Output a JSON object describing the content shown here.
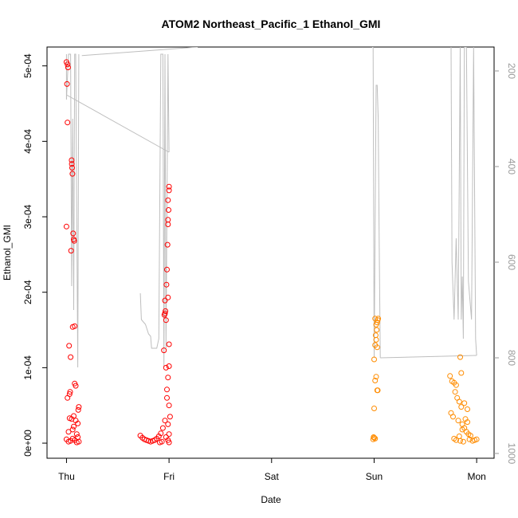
{
  "chart_data": {
    "type": "scatter",
    "title": "ATOM2 Northeast_Pacific_1 Ethanol_GMI",
    "xlabel": "Date",
    "ylabel": "Ethanol_GMI",
    "x_ticks": [
      "Thu",
      "Fri",
      "Sat",
      "Sun",
      "Mon"
    ],
    "xlim": [
      -0.19,
      4.17
    ],
    "ylim": [
      -2e-05,
      0.000525
    ],
    "y_ticks": [
      "0e+00",
      "1e-04",
      "2e-04",
      "3e-04",
      "4e-04",
      "5e-04"
    ],
    "y_tick_values": [
      0,
      0.0001,
      0.0002,
      0.0003,
      0.0004,
      0.0005
    ],
    "y2_ticks": [
      "200",
      "400",
      "600",
      "800",
      "1000"
    ],
    "y2_tick_values": [
      200,
      400,
      600,
      800,
      1000
    ],
    "y2lim": [
      1010,
      150
    ],
    "grid": false,
    "series": [
      {
        "color": "#ff0000",
        "marker": "open-circle",
        "points": [
          [
            0.0,
            0.000505
          ],
          [
            0.01,
            0.000502
          ],
          [
            0.015,
            0.000498
          ],
          [
            0.005,
            0.000476
          ],
          [
            0.01,
            0.000425
          ],
          [
            0.0,
            0.000287
          ],
          [
            0.025,
            0.000129
          ],
          [
            0.01,
            6e-05
          ],
          [
            0.05,
            0.000375
          ],
          [
            0.052,
            0.00037
          ],
          [
            0.055,
            0.000365
          ],
          [
            0.058,
            0.000357
          ],
          [
            0.045,
            0.000255
          ],
          [
            0.06,
            0.000154
          ],
          [
            0.08,
            0.000155
          ],
          [
            0.065,
            0.000278
          ],
          [
            0.07,
            0.00027
          ],
          [
            0.075,
            0.000268
          ],
          [
            0.04,
            0.000114
          ],
          [
            0.03,
            6.5e-05
          ],
          [
            0.035,
            6.8e-05
          ],
          [
            0.08,
            7.9e-05
          ],
          [
            0.09,
            7.6e-05
          ],
          [
            0.12,
            4.8e-05
          ],
          [
            0.115,
            4.4e-05
          ],
          [
            0.05,
            3.2e-05
          ],
          [
            0.07,
            3.6e-05
          ],
          [
            0.09,
            3e-05
          ],
          [
            0.11,
            2.6e-05
          ],
          [
            0.02,
            1.5e-05
          ],
          [
            0.06,
            1.8e-05
          ],
          [
            0.1,
            1.2e-05
          ],
          [
            0.0,
            5e-06
          ],
          [
            0.02,
            2e-06
          ],
          [
            0.04,
            3e-06
          ],
          [
            0.06,
            6e-06
          ],
          [
            0.08,
            4e-06
          ],
          [
            0.1,
            1e-06
          ],
          [
            0.12,
            2e-06
          ],
          [
            0.11,
            8e-06
          ],
          [
            0.07,
            2.2e-05
          ],
          [
            0.03,
            3.3e-05
          ],
          [
            0.72,
            1e-05
          ],
          [
            0.74,
            7e-06
          ],
          [
            0.76,
            5e-06
          ],
          [
            0.78,
            4e-06
          ],
          [
            0.8,
            3e-06
          ],
          [
            0.82,
            2e-06
          ],
          [
            0.84,
            3e-06
          ],
          [
            0.86,
            4e-06
          ],
          [
            0.88,
            6e-06
          ],
          [
            0.9,
            9e-06
          ],
          [
            0.92,
            1.3e-05
          ],
          [
            0.94,
            2e-05
          ],
          [
            0.96,
            3e-05
          ],
          [
            0.98,
            6e-05
          ],
          [
            0.97,
            0.0001
          ],
          [
            0.95,
            0.000123
          ],
          [
            0.96,
            0.000172
          ],
          [
            0.955,
            0.00017
          ],
          [
            0.965,
            0.000175
          ],
          [
            0.96,
            0.000189
          ],
          [
            0.97,
            0.000163
          ],
          [
            0.98,
            0.00023
          ],
          [
            0.975,
            0.00021
          ],
          [
            0.985,
            0.000263
          ],
          [
            0.99,
            0.00029
          ],
          [
            0.99,
            0.000296
          ],
          [
            0.995,
            0.000309
          ],
          [
            0.99,
            0.000322
          ],
          [
            1.0,
            0.000335
          ],
          [
            1.0,
            0.00034
          ],
          [
            0.99,
            0.000193
          ],
          [
            1.0,
            0.000131
          ],
          [
            1.0,
            0.000102
          ],
          [
            0.99,
            8.7e-05
          ],
          [
            0.98,
            7.1e-05
          ],
          [
            1.0,
            5e-05
          ],
          [
            1.01,
            3.5e-05
          ],
          [
            0.99,
            2.5e-05
          ],
          [
            1.0,
            1.2e-05
          ],
          [
            0.97,
            8e-06
          ],
          [
            0.99,
            4e-06
          ],
          [
            1.0,
            1e-06
          ],
          [
            0.93,
            2e-06
          ],
          [
            0.91,
            1e-06
          ]
        ]
      },
      {
        "color": "#ff8c00",
        "marker": "open-circle",
        "points": [
          [
            2.99,
            5e-06
          ],
          [
            3.0,
            7e-06
          ],
          [
            3.01,
            6e-06
          ],
          [
            2.995,
            8e-06
          ],
          [
            3.0,
            4.6e-05
          ],
          [
            3.01,
            8.3e-05
          ],
          [
            3.02,
            8.8e-05
          ],
          [
            3.03,
            7e-05
          ],
          [
            3.035,
            7e-05
          ],
          [
            3.0,
            0.000111
          ],
          [
            3.01,
            0.00013
          ],
          [
            3.02,
            0.000137
          ],
          [
            3.03,
            0.000127
          ],
          [
            3.015,
            0.000143
          ],
          [
            3.025,
            0.00015
          ],
          [
            3.02,
            0.000157
          ],
          [
            3.03,
            0.00016
          ],
          [
            3.01,
            0.000165
          ],
          [
            3.04,
            0.000165
          ],
          [
            3.035,
            0.000163
          ],
          [
            3.74,
            8.9e-05
          ],
          [
            3.76,
            8.2e-05
          ],
          [
            3.78,
            8e-05
          ],
          [
            3.8,
            7.7e-05
          ],
          [
            3.79,
            6.8e-05
          ],
          [
            3.81,
            6e-05
          ],
          [
            3.83,
            5.5e-05
          ],
          [
            3.85,
            4.8e-05
          ],
          [
            3.75,
            4e-05
          ],
          [
            3.77,
            3.5e-05
          ],
          [
            3.82,
            3e-05
          ],
          [
            3.86,
            2.5e-05
          ],
          [
            3.88,
            2e-05
          ],
          [
            3.9,
            1.5e-05
          ],
          [
            3.92,
            1.2e-05
          ],
          [
            3.94,
            1e-05
          ],
          [
            3.78,
            6e-06
          ],
          [
            3.8,
            4e-06
          ],
          [
            3.84,
            3e-06
          ],
          [
            3.87,
            2e-06
          ],
          [
            3.93,
            5e-06
          ],
          [
            3.96,
            3e-06
          ],
          [
            3.98,
            4e-06
          ],
          [
            4.0,
            5e-06
          ],
          [
            3.84,
            0.000114
          ],
          [
            3.85,
            9.3e-05
          ],
          [
            3.88,
            5.3e-05
          ],
          [
            3.91,
            4.5e-05
          ],
          [
            3.89,
            3.2e-05
          ],
          [
            3.91,
            2.8e-05
          ],
          [
            3.86,
            1.8e-05
          ],
          [
            3.83,
            9e-06
          ]
        ]
      }
    ],
    "pressure_series": {
      "color": "#bebebe",
      "axis": "right",
      "segments": [
        [
          [
            0.0,
            165
          ],
          [
            0.0,
            260
          ],
          [
            0.02,
            165
          ],
          [
            0.04,
            165
          ],
          [
            0.05,
            650
          ],
          [
            0.06,
            300
          ],
          [
            0.07,
            700
          ],
          [
            0.08,
            165
          ],
          [
            0.09,
            165
          ],
          [
            0.11,
            820
          ],
          [
            0.12,
            165
          ],
          [
            0.12,
            165
          ]
        ],
        [
          [
            0.0,
            250
          ],
          [
            1.0,
            370
          ]
        ],
        [
          [
            0.15,
            168
          ],
          [
            1.28,
            150
          ]
        ],
        [
          [
            0.72,
            665
          ],
          [
            0.73,
            720
          ],
          [
            0.75,
            725
          ],
          [
            0.77,
            730
          ],
          [
            0.8,
            750
          ],
          [
            0.82,
            755
          ],
          [
            0.83,
            780
          ],
          [
            0.88,
            780
          ],
          [
            0.9,
            760
          ],
          [
            0.92,
            165
          ],
          [
            0.94,
            165
          ],
          [
            0.95,
            820
          ],
          [
            0.96,
            165
          ],
          [
            0.97,
            780
          ],
          [
            0.99,
            165
          ],
          [
            1.0,
            370
          ]
        ],
        [
          [
            2.98,
            150
          ],
          [
            2.99,
            150
          ],
          [
            3.0,
            800
          ],
          [
            3.02,
            230
          ],
          [
            3.03,
            230
          ],
          [
            3.04,
            300
          ],
          [
            3.05,
            570
          ],
          [
            3.06,
            800
          ]
        ],
        [
          [
            3.06,
            800
          ],
          [
            4.0,
            795
          ]
        ],
        [
          [
            3.75,
            150
          ],
          [
            3.76,
            600
          ],
          [
            3.78,
            720
          ],
          [
            3.8,
            550
          ],
          [
            3.82,
            720
          ],
          [
            3.84,
            150
          ],
          [
            3.85,
            720
          ],
          [
            3.86,
            630
          ],
          [
            3.87,
            760
          ],
          [
            3.88,
            150
          ],
          [
            3.9,
            150
          ],
          [
            3.92,
            640
          ],
          [
            3.95,
            720
          ],
          [
            3.97,
            150
          ],
          [
            3.99,
            760
          ],
          [
            4.0,
            795
          ]
        ]
      ]
    }
  }
}
